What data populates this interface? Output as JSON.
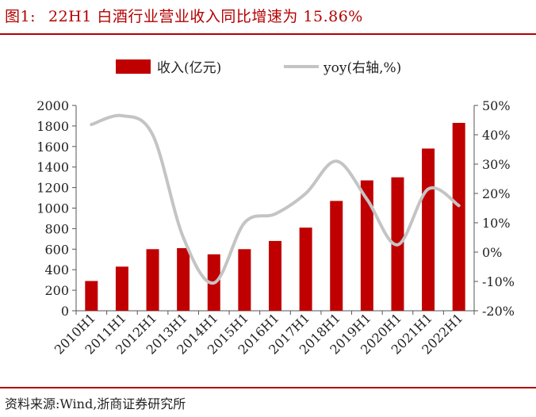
{
  "header": {
    "figure_label": "图1:",
    "title": "22H1 白酒行业营业收入同比增速为 15.86%"
  },
  "footer": {
    "source": "资料来源:Wind,浙商证券研究所"
  },
  "colors": {
    "accent": "#b30000",
    "bar": "#c00000",
    "line": "#c4c4c4",
    "axis": "#555555"
  },
  "chart_data": {
    "type": "bar",
    "categories": [
      "2010H1",
      "2011H1",
      "2012H1",
      "2013H1",
      "2014H1",
      "2015H1",
      "2016H1",
      "2017H1",
      "2018H1",
      "2019H1",
      "2020H1",
      "2021H1",
      "2022H1"
    ],
    "series": [
      {
        "name": "收入(亿元)",
        "type": "bar",
        "axis": "left",
        "values": [
          290,
          430,
          600,
          610,
          550,
          600,
          680,
          810,
          1070,
          1270,
          1300,
          1580,
          1830
        ]
      },
      {
        "name": "yoy(右轴,%)",
        "type": "line",
        "axis": "right",
        "smooth": true,
        "values": [
          43.5,
          46.5,
          40,
          5,
          -10.5,
          10,
          13,
          20,
          31,
          18,
          2.5,
          21.5,
          15.86
        ]
      }
    ],
    "y_left": {
      "min": 0,
      "max": 2000,
      "step": 200,
      "ticks": [
        "0",
        "200",
        "400",
        "600",
        "800",
        "1000",
        "1200",
        "1400",
        "1600",
        "1800",
        "2000"
      ]
    },
    "y_right": {
      "min": -20,
      "max": 50,
      "step": 10,
      "ticks": [
        "-20%",
        "-10%",
        "0%",
        "10%",
        "20%",
        "30%",
        "40%",
        "50%"
      ]
    },
    "legend_position": "top-center",
    "grid": false
  }
}
